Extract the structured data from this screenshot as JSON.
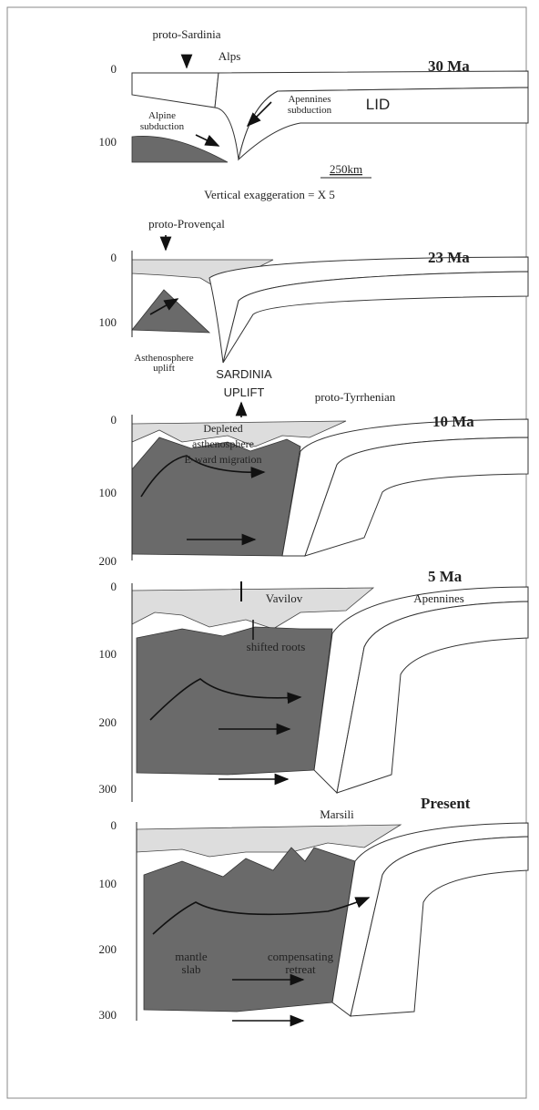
{
  "panels": [
    {
      "age": "30 Ma",
      "depth_ticks": [
        0,
        100
      ],
      "labels": [
        [
          "proto-Sardinia"
        ],
        [
          "Alps"
        ],
        [
          "Apennines",
          "subduction"
        ],
        [
          "LID"
        ],
        [
          "Alpine",
          "subduction"
        ]
      ]
    },
    {
      "age": "23 Ma",
      "depth_ticks": [
        0,
        100
      ],
      "labels": [
        [
          "proto-Provençal"
        ],
        [
          "Asthenosphere",
          "uplift"
        ]
      ]
    },
    {
      "age": "10 Ma",
      "depth_ticks": [
        0,
        100,
        200
      ],
      "labels": [
        [
          "SARDINIA",
          "UPLIFT"
        ],
        [
          "proto-Tyrrhenian"
        ],
        [
          "Depleted",
          "asthenosphere",
          "E-ward migration"
        ]
      ]
    },
    {
      "age": "5 Ma",
      "depth_ticks": [
        0,
        100,
        200,
        300
      ],
      "labels": [
        [
          "Vavilov"
        ],
        [
          "Apennines"
        ],
        [
          "shifted roots"
        ]
      ]
    },
    {
      "age": "Present",
      "depth_ticks": [
        0,
        100,
        200,
        300
      ],
      "labels": [
        [
          "Marsili"
        ],
        [
          "mantle",
          "slab"
        ],
        [
          "compensating",
          "retreat"
        ]
      ]
    }
  ],
  "scale_bar": "250km",
  "exaggeration": "Vertical exaggeration = X 5"
}
